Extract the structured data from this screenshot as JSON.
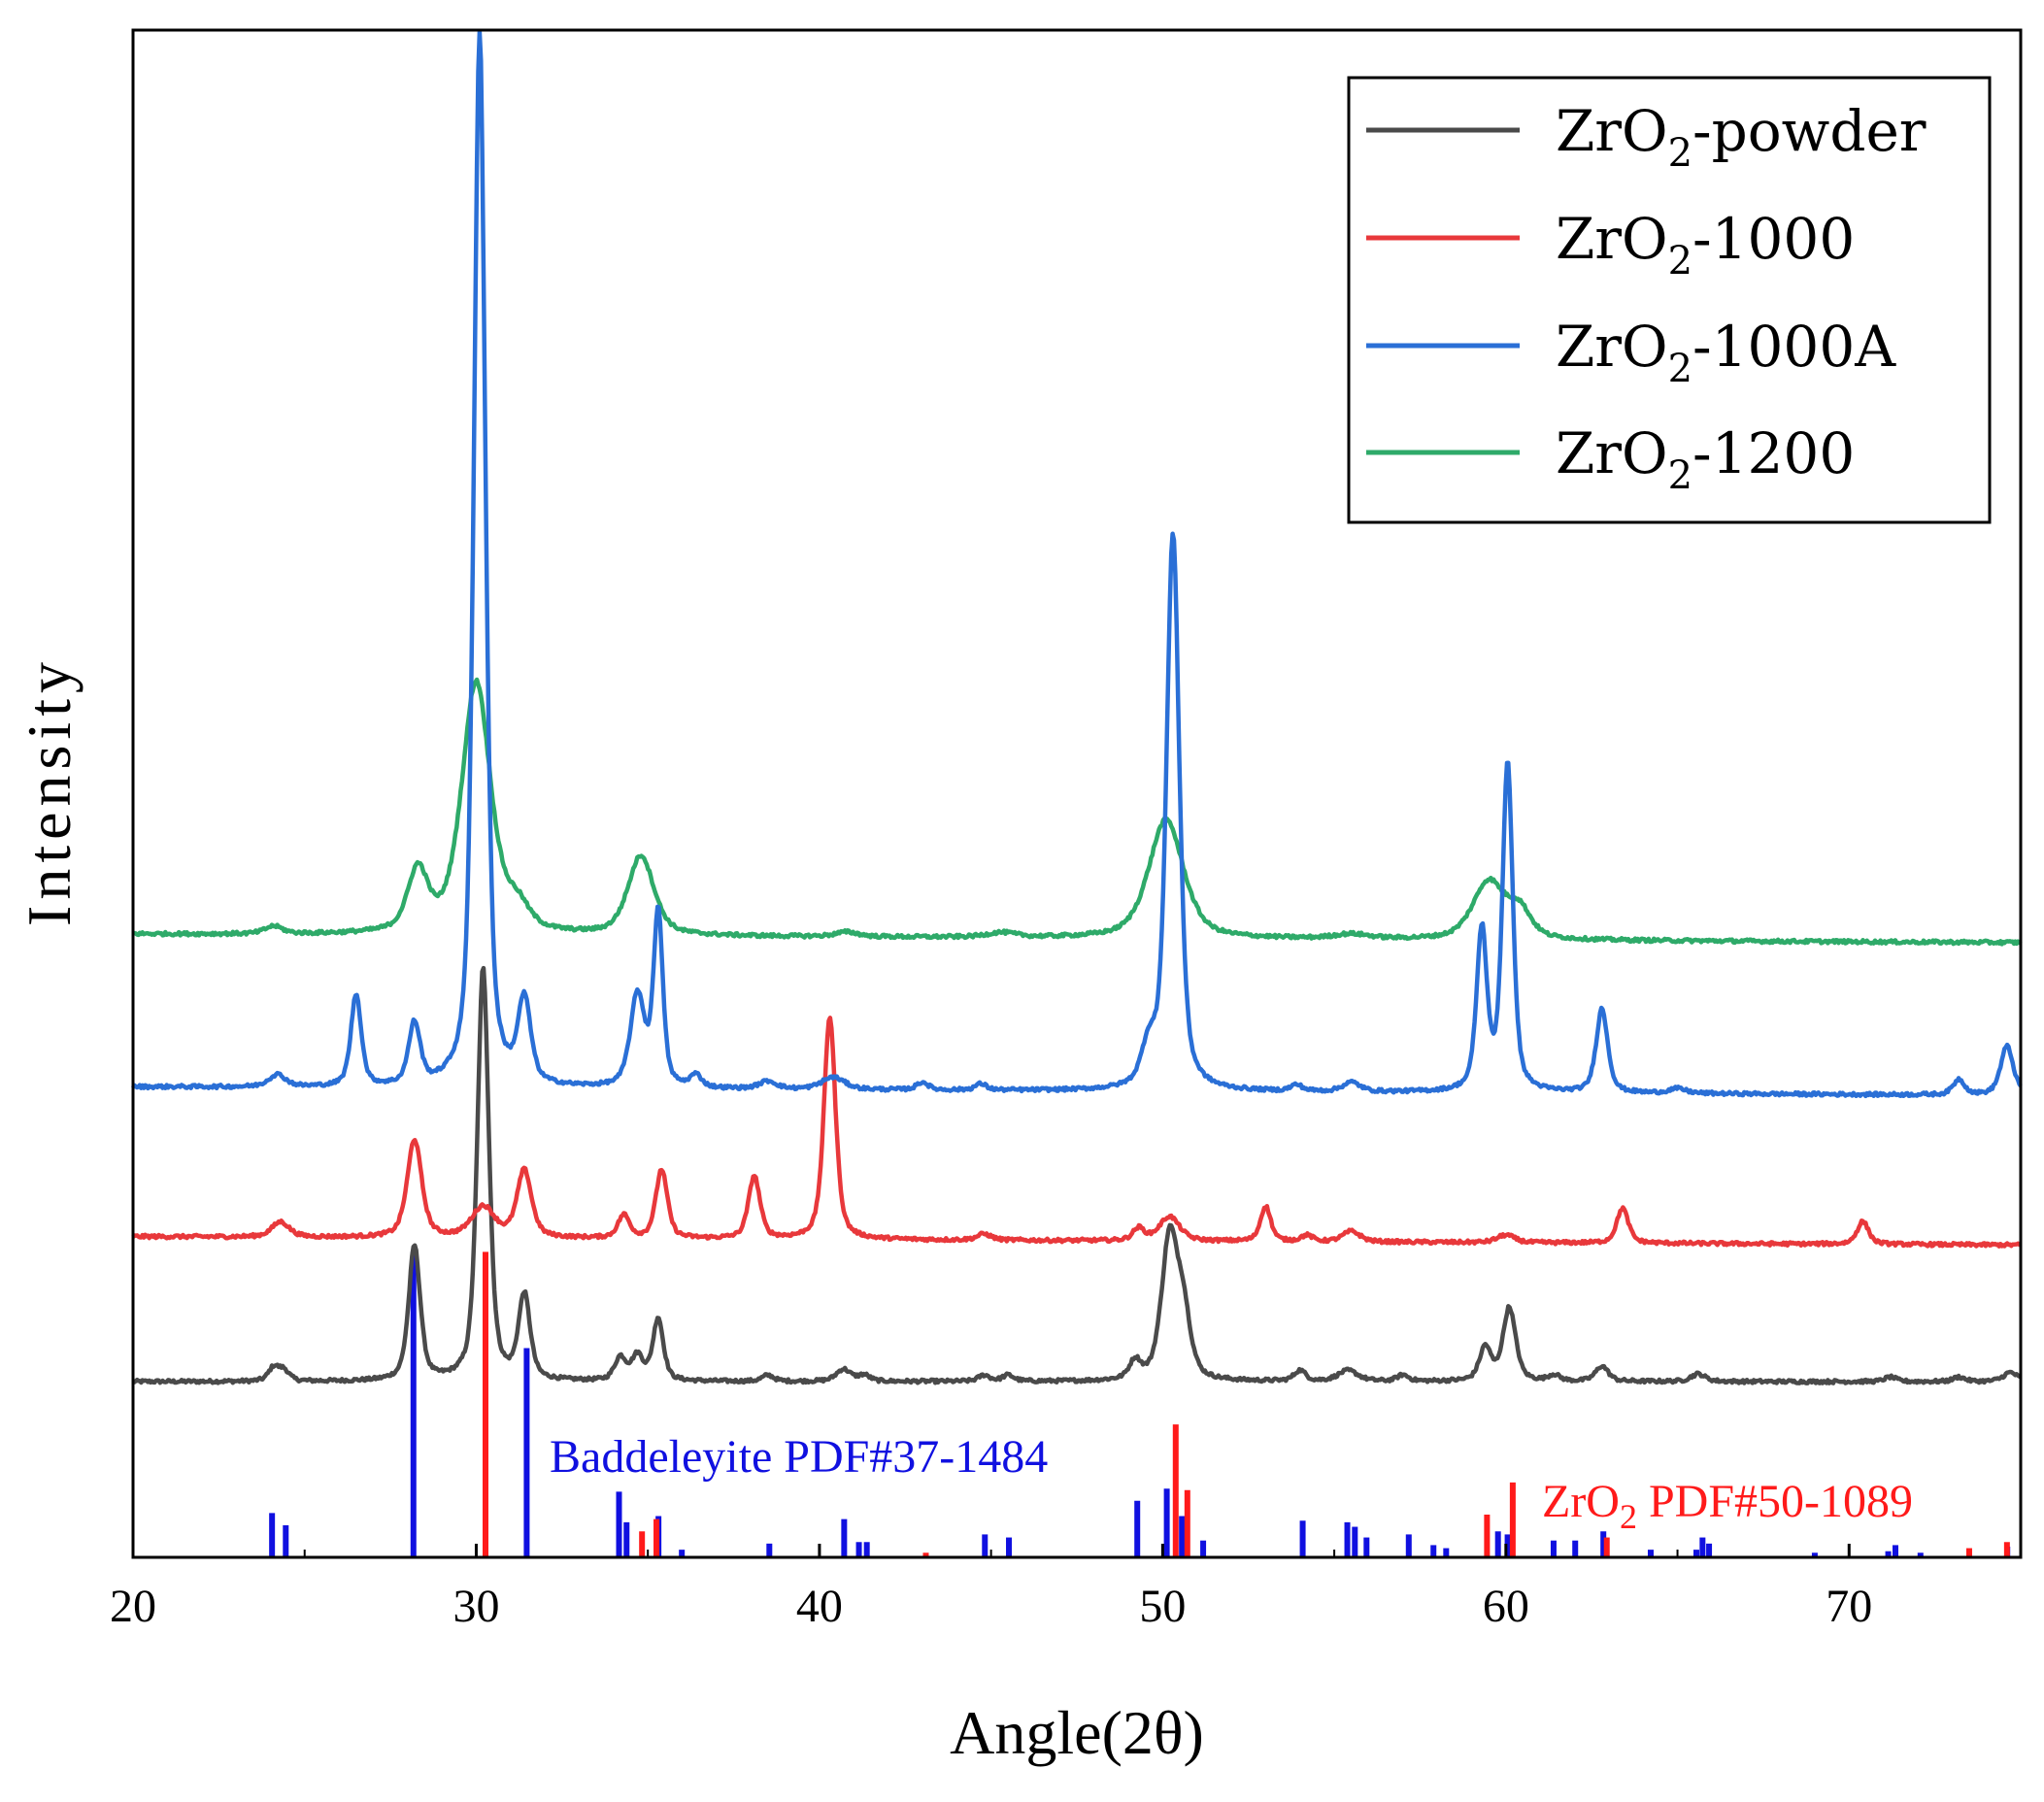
{
  "chart_data": {
    "type": "line",
    "title": "",
    "xlabel": "Angle(2θ)",
    "ylabel": "Intensity",
    "xlim": [
      20,
      75
    ],
    "ylim": [
      0,
      100
    ],
    "xticks": [
      20,
      30,
      40,
      50,
      60,
      70
    ],
    "yticks_shown": false,
    "legend_position": "top-right",
    "series": [
      {
        "name": "ZrO2-powder",
        "legend_main": "ZrO",
        "legend_sub": "2",
        "legend_rest": "-powder",
        "color": "#4a4a4a",
        "baseline": 11.5,
        "slope": 0.0,
        "peaks": [
          {
            "x": 24.1,
            "h": 0.9,
            "w": 0.18
          },
          {
            "x": 24.4,
            "h": 0.7,
            "w": 0.18
          },
          {
            "x": 28.2,
            "h": 8.8,
            "w": 0.2
          },
          {
            "x": 30.2,
            "h": 27.0,
            "w": 0.2
          },
          {
            "x": 31.4,
            "h": 5.5,
            "w": 0.2
          },
          {
            "x": 34.2,
            "h": 1.5,
            "w": 0.2
          },
          {
            "x": 34.7,
            "h": 1.6,
            "w": 0.2
          },
          {
            "x": 35.3,
            "h": 4.1,
            "w": 0.18
          },
          {
            "x": 38.5,
            "h": 0.4,
            "w": 0.2
          },
          {
            "x": 40.7,
            "h": 0.8,
            "w": 0.25
          },
          {
            "x": 41.3,
            "h": 0.4,
            "w": 0.2
          },
          {
            "x": 44.8,
            "h": 0.4,
            "w": 0.2
          },
          {
            "x": 45.5,
            "h": 0.4,
            "w": 0.2
          },
          {
            "x": 49.2,
            "h": 1.2,
            "w": 0.2
          },
          {
            "x": 50.2,
            "h": 9.2,
            "w": 0.28
          },
          {
            "x": 50.6,
            "h": 4.0,
            "w": 0.25
          },
          {
            "x": 54.0,
            "h": 0.7,
            "w": 0.2
          },
          {
            "x": 55.4,
            "h": 0.7,
            "w": 0.35
          },
          {
            "x": 57.0,
            "h": 0.4,
            "w": 0.2
          },
          {
            "x": 59.4,
            "h": 2.2,
            "w": 0.2
          },
          {
            "x": 60.1,
            "h": 4.8,
            "w": 0.22
          },
          {
            "x": 61.4,
            "h": 0.4,
            "w": 0.2
          },
          {
            "x": 62.8,
            "h": 1.0,
            "w": 0.22
          },
          {
            "x": 65.6,
            "h": 0.5,
            "w": 0.25
          },
          {
            "x": 71.2,
            "h": 0.3,
            "w": 0.2
          },
          {
            "x": 73.2,
            "h": 0.3,
            "w": 0.2
          },
          {
            "x": 74.7,
            "h": 0.6,
            "w": 0.25
          }
        ]
      },
      {
        "name": "ZrO2-1000",
        "legend_main": "ZrO",
        "legend_sub": "2",
        "legend_rest": "-1000",
        "color": "#e8383b",
        "baseline": 21.0,
        "slope": -0.01,
        "peaks": [
          {
            "x": 24.3,
            "h": 1.0,
            "w": 0.3
          },
          {
            "x": 28.2,
            "h": 6.4,
            "w": 0.25
          },
          {
            "x": 30.2,
            "h": 2.0,
            "w": 0.4
          },
          {
            "x": 31.4,
            "h": 4.4,
            "w": 0.25
          },
          {
            "x": 34.3,
            "h": 1.5,
            "w": 0.2
          },
          {
            "x": 35.4,
            "h": 4.5,
            "w": 0.2
          },
          {
            "x": 38.1,
            "h": 4.1,
            "w": 0.2
          },
          {
            "x": 40.3,
            "h": 14.6,
            "w": 0.2
          },
          {
            "x": 44.8,
            "h": 0.4,
            "w": 0.25
          },
          {
            "x": 49.3,
            "h": 0.8,
            "w": 0.2
          },
          {
            "x": 50.2,
            "h": 1.6,
            "w": 0.35
          },
          {
            "x": 53.0,
            "h": 2.3,
            "w": 0.18
          },
          {
            "x": 54.2,
            "h": 0.4,
            "w": 0.2
          },
          {
            "x": 55.5,
            "h": 0.7,
            "w": 0.3
          },
          {
            "x": 60.0,
            "h": 0.5,
            "w": 0.3
          },
          {
            "x": 63.4,
            "h": 2.3,
            "w": 0.2
          },
          {
            "x": 70.4,
            "h": 1.5,
            "w": 0.2
          }
        ]
      },
      {
        "name": "ZrO2-1000A",
        "legend_main": "ZrO",
        "legend_sub": "2",
        "legend_rest": "-1000A",
        "color": "#2a6fd6",
        "baseline": 30.8,
        "slope": -0.01,
        "peaks": [
          {
            "x": 24.2,
            "h": 0.8,
            "w": 0.3
          },
          {
            "x": 26.5,
            "h": 6.0,
            "w": 0.18
          },
          {
            "x": 28.2,
            "h": 4.0,
            "w": 0.2
          },
          {
            "x": 30.1,
            "h": 69.0,
            "w": 0.2
          },
          {
            "x": 31.4,
            "h": 5.4,
            "w": 0.22
          },
          {
            "x": 34.7,
            "h": 6.0,
            "w": 0.25
          },
          {
            "x": 35.3,
            "h": 11.5,
            "w": 0.16
          },
          {
            "x": 36.4,
            "h": 0.8,
            "w": 0.2
          },
          {
            "x": 38.5,
            "h": 0.5,
            "w": 0.3
          },
          {
            "x": 40.4,
            "h": 0.8,
            "w": 0.4
          },
          {
            "x": 43.0,
            "h": 0.5,
            "w": 0.2
          },
          {
            "x": 44.7,
            "h": 0.4,
            "w": 0.2
          },
          {
            "x": 49.6,
            "h": 2.5,
            "w": 0.25
          },
          {
            "x": 50.3,
            "h": 36.5,
            "w": 0.22
          },
          {
            "x": 53.9,
            "h": 0.4,
            "w": 0.2
          },
          {
            "x": 55.5,
            "h": 0.6,
            "w": 0.3
          },
          {
            "x": 59.3,
            "h": 10.5,
            "w": 0.18
          },
          {
            "x": 60.05,
            "h": 21.5,
            "w": 0.18
          },
          {
            "x": 62.8,
            "h": 5.5,
            "w": 0.2
          },
          {
            "x": 65.0,
            "h": 0.3,
            "w": 0.3
          },
          {
            "x": 73.2,
            "h": 1.0,
            "w": 0.2
          },
          {
            "x": 74.6,
            "h": 3.2,
            "w": 0.22
          }
        ]
      },
      {
        "name": "ZrO2-1200",
        "legend_main": "ZrO",
        "legend_sub": "2",
        "legend_rest": "-1200",
        "color": "#2eaa69",
        "baseline": 40.8,
        "slope": -0.01,
        "peaks": [
          {
            "x": 24.1,
            "h": 0.5,
            "w": 0.3
          },
          {
            "x": 28.3,
            "h": 4.0,
            "w": 0.35
          },
          {
            "x": 30.0,
            "h": 16.5,
            "w": 0.5
          },
          {
            "x": 31.2,
            "h": 1.5,
            "w": 0.4
          },
          {
            "x": 34.8,
            "h": 5.2,
            "w": 0.45
          },
          {
            "x": 40.8,
            "h": 0.3,
            "w": 0.4
          },
          {
            "x": 45.3,
            "h": 0.3,
            "w": 0.5
          },
          {
            "x": 50.1,
            "h": 7.8,
            "w": 0.6
          },
          {
            "x": 55.5,
            "h": 0.3,
            "w": 0.6
          },
          {
            "x": 59.5,
            "h": 3.8,
            "w": 0.55
          },
          {
            "x": 60.4,
            "h": 1.8,
            "w": 0.4
          }
        ]
      }
    ],
    "reference_patterns": [
      {
        "name": "Baddeleyite PDF#37-1484",
        "label": "Baddeleyite PDF#37-1484",
        "color": "#1010e0",
        "lines": [
          {
            "x": 24.05,
            "h": 2.9
          },
          {
            "x": 24.45,
            "h": 2.1
          },
          {
            "x": 28.17,
            "h": 20.0
          },
          {
            "x": 31.47,
            "h": 13.7
          },
          {
            "x": 34.16,
            "h": 4.3
          },
          {
            "x": 34.38,
            "h": 2.3
          },
          {
            "x": 35.31,
            "h": 2.7
          },
          {
            "x": 35.99,
            "h": 0.5
          },
          {
            "x": 38.54,
            "h": 0.9
          },
          {
            "x": 40.72,
            "h": 2.5
          },
          {
            "x": 41.15,
            "h": 1.0
          },
          {
            "x": 41.38,
            "h": 1.0
          },
          {
            "x": 44.82,
            "h": 1.5
          },
          {
            "x": 45.52,
            "h": 1.3
          },
          {
            "x": 49.26,
            "h": 3.7
          },
          {
            "x": 50.12,
            "h": 4.5
          },
          {
            "x": 50.56,
            "h": 2.7
          },
          {
            "x": 51.18,
            "h": 1.1
          },
          {
            "x": 54.08,
            "h": 2.4
          },
          {
            "x": 55.38,
            "h": 2.3
          },
          {
            "x": 55.6,
            "h": 2.0
          },
          {
            "x": 55.94,
            "h": 1.3
          },
          {
            "x": 57.17,
            "h": 1.5
          },
          {
            "x": 57.89,
            "h": 0.8
          },
          {
            "x": 58.26,
            "h": 0.6
          },
          {
            "x": 59.77,
            "h": 1.7
          },
          {
            "x": 60.05,
            "h": 1.5
          },
          {
            "x": 61.39,
            "h": 1.1
          },
          {
            "x": 62.02,
            "h": 1.1
          },
          {
            "x": 62.84,
            "h": 1.7
          },
          {
            "x": 64.22,
            "h": 0.5
          },
          {
            "x": 65.55,
            "h": 0.5
          },
          {
            "x": 65.73,
            "h": 1.3
          },
          {
            "x": 65.92,
            "h": 0.9
          },
          {
            "x": 69.0,
            "h": 0.3
          },
          {
            "x": 71.14,
            "h": 0.4
          },
          {
            "x": 71.35,
            "h": 0.8
          },
          {
            "x": 72.08,
            "h": 0.3
          },
          {
            "x": 74.61,
            "h": 0.7
          }
        ]
      },
      {
        "name": "ZrO2 PDF#50-1089",
        "label_main": "ZrO",
        "label_sub": "2",
        "label_rest": " PDF#50-1089",
        "color": "#ff1a1a",
        "lines": [
          {
            "x": 30.27,
            "h": 20.0
          },
          {
            "x": 34.83,
            "h": 1.7
          },
          {
            "x": 35.25,
            "h": 2.5
          },
          {
            "x": 43.1,
            "h": 0.3
          },
          {
            "x": 50.38,
            "h": 8.7
          },
          {
            "x": 50.72,
            "h": 4.4
          },
          {
            "x": 59.45,
            "h": 2.8
          },
          {
            "x": 60.2,
            "h": 4.9
          },
          {
            "x": 62.94,
            "h": 1.3
          },
          {
            "x": 73.5,
            "h": 0.6
          },
          {
            "x": 74.6,
            "h": 1.0
          }
        ]
      }
    ]
  }
}
